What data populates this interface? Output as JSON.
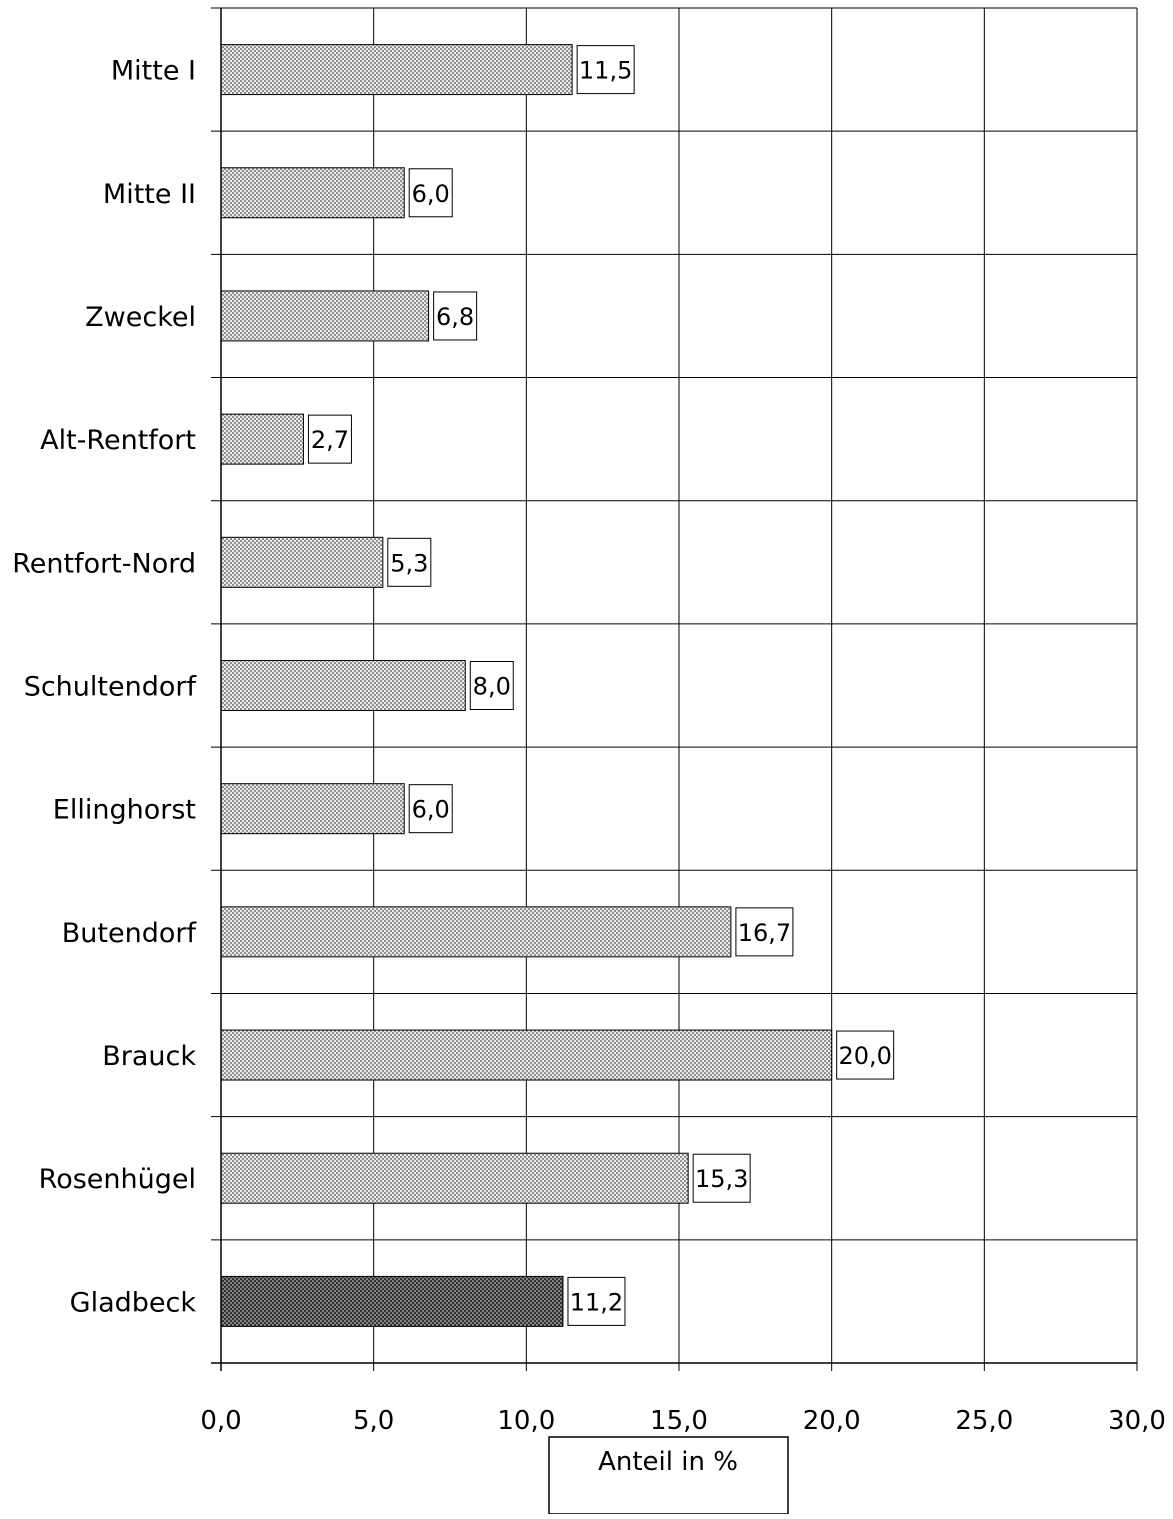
{
  "chart_data": {
    "type": "bar",
    "orientation": "horizontal",
    "categories": [
      "Mitte I",
      "Mitte II",
      "Zweckel",
      "Alt-Rentfort",
      "Rentfort-Nord",
      "Schultendorf",
      "Ellinghorst",
      "Butendorf",
      "Brauck",
      "Rosenhügel",
      "Gladbeck"
    ],
    "values": [
      11.5,
      6.0,
      6.8,
      2.7,
      5.3,
      8.0,
      6.0,
      16.7,
      20.0,
      15.3,
      11.2
    ],
    "value_labels": [
      "11,5",
      "6,0",
      "6,8",
      "2,7",
      "5,3",
      "8,0",
      "6,0",
      "16,7",
      "20,0",
      "15,3",
      "11,2"
    ],
    "highlighted_category": "Gladbeck",
    "xlim": [
      0,
      30
    ],
    "xticks": [
      "0,0",
      "5,0",
      "10,0",
      "15,0",
      "20,0",
      "25,0",
      "30,0"
    ],
    "xlabel": "Anteil in %",
    "title": "",
    "grid": true,
    "colors": {
      "bar_fill": "#e8e8e8",
      "bar_dots": "#555555",
      "highlight_fill": "#333333",
      "highlight_dots": "#bbbbbb",
      "axis": "#000000",
      "grid": "#000000"
    }
  }
}
